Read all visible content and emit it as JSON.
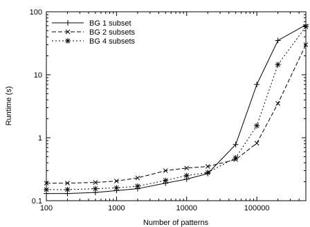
{
  "chart_data": {
    "type": "line",
    "xscale": "log",
    "yscale": "log",
    "xlim": [
      100,
      500000
    ],
    "ylim": [
      0.1,
      100
    ],
    "xlabel": "Number of patterns",
    "ylabel": "Runtime (s)",
    "xticks": [
      100,
      1000,
      10000,
      100000
    ],
    "xtick_labels": [
      "100",
      "1000",
      "10000",
      "100000"
    ],
    "yticks": [
      0.1,
      1,
      10,
      100
    ],
    "ytick_labels": [
      "0.1",
      "1",
      "10",
      "100"
    ],
    "grid": false,
    "legend_position": "top-left",
    "x": [
      100,
      200,
      500,
      1000,
      2000,
      5000,
      10000,
      20000,
      50000,
      100000,
      200000,
      500000
    ],
    "series": [
      {
        "name": "BG 1 subset",
        "marker": "plus",
        "dash": "solid",
        "values": [
          0.13,
          0.13,
          0.135,
          0.145,
          0.155,
          0.19,
          0.22,
          0.27,
          0.78,
          7.0,
          35.0,
          62.0
        ]
      },
      {
        "name": "BG 2 subsets",
        "marker": "cross",
        "dash": "dashed",
        "values": [
          0.19,
          0.19,
          0.195,
          0.205,
          0.23,
          0.3,
          0.33,
          0.35,
          0.45,
          0.82,
          3.5,
          30.0
        ]
      },
      {
        "name": "BG 4 subsets",
        "marker": "star",
        "dash": "dotted",
        "values": [
          0.15,
          0.15,
          0.155,
          0.16,
          0.17,
          0.21,
          0.25,
          0.28,
          0.48,
          1.55,
          14.5,
          58.0
        ]
      }
    ]
  }
}
